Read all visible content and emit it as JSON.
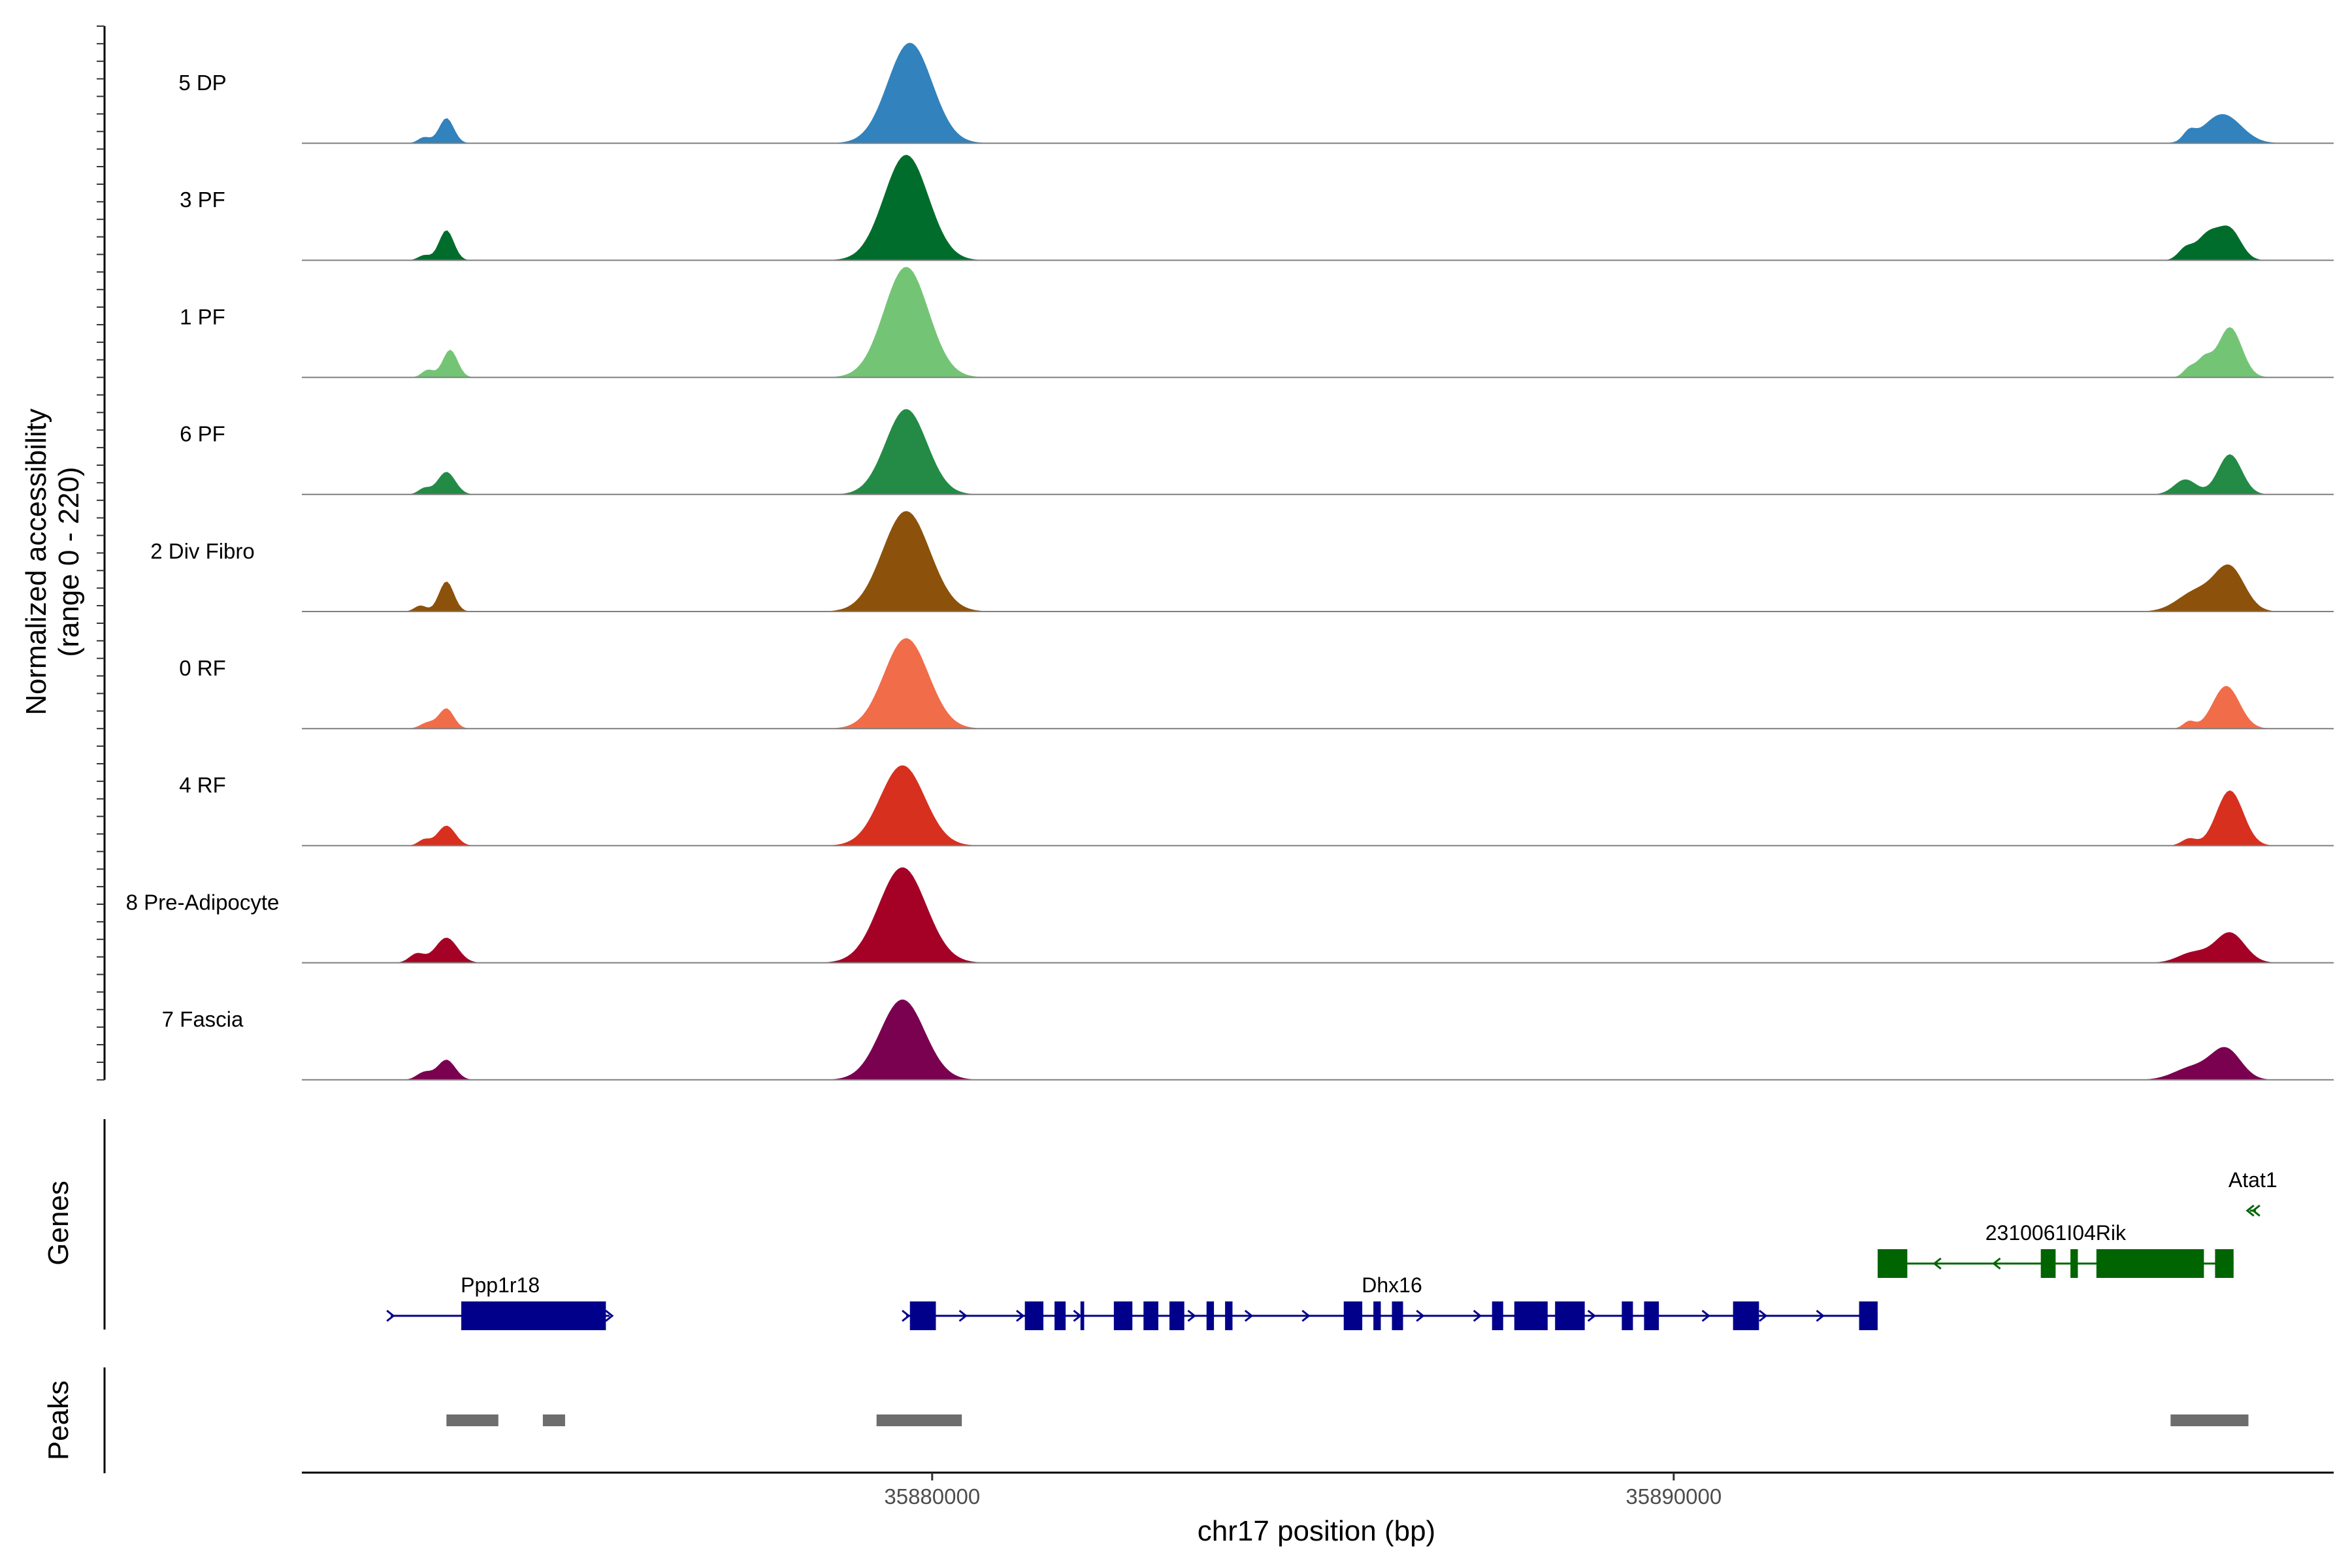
{
  "chart_data": {
    "type": "area",
    "subtype": "genome-coverage-tracks",
    "xlabel": "chr17 position (bp)",
    "ylabel_line1": "Normalized accessibility",
    "ylabel_line2": "(range 0 - 220)",
    "y_range": [
      0,
      220
    ],
    "x_range": [
      35871500,
      35898900
    ],
    "x_ticks": [
      {
        "value": 35880000,
        "label": "35880000"
      },
      {
        "value": 35890000,
        "label": "35890000"
      }
    ],
    "series": [
      {
        "name": "5 DP",
        "color": "#3182bd",
        "peaks": [
          [
            35873150,
            12,
            80
          ],
          [
            35873450,
            50,
            100
          ],
          [
            35879700,
            200,
            300
          ],
          [
            35896950,
            18,
            80
          ],
          [
            35897400,
            58,
            250
          ]
        ]
      },
      {
        "name": "3 PF",
        "color": "#006d2c",
        "peaks": [
          [
            35873150,
            10,
            80
          ],
          [
            35873450,
            60,
            100
          ],
          [
            35879650,
            210,
            300
          ],
          [
            35896900,
            22,
            100
          ],
          [
            35897200,
            50,
            150
          ],
          [
            35897500,
            60,
            150
          ]
        ]
      },
      {
        "name": "1 PF",
        "color": "#74c476",
        "peaks": [
          [
            35873200,
            15,
            80
          ],
          [
            35873500,
            55,
            100
          ],
          [
            35879650,
            220,
            300
          ],
          [
            35896950,
            18,
            80
          ],
          [
            35897150,
            35,
            100
          ],
          [
            35897500,
            100,
            160
          ]
        ]
      },
      {
        "name": "6 PF",
        "color": "#238b45",
        "peaks": [
          [
            35873150,
            12,
            80
          ],
          [
            35873450,
            45,
            120
          ],
          [
            35879650,
            170,
            280
          ],
          [
            35896900,
            30,
            150
          ],
          [
            35897500,
            80,
            160
          ]
        ]
      },
      {
        "name": "2 Div Fibro",
        "color": "#8c510a",
        "peaks": [
          [
            35873100,
            12,
            80
          ],
          [
            35873450,
            60,
            100
          ],
          [
            35879650,
            200,
            320
          ],
          [
            35897050,
            40,
            250
          ],
          [
            35897500,
            85,
            200
          ]
        ]
      },
      {
        "name": "0 RF",
        "color": "#f16c49",
        "peaks": [
          [
            35873200,
            12,
            100
          ],
          [
            35873450,
            40,
            100
          ],
          [
            35879650,
            180,
            300
          ],
          [
            35896950,
            14,
            80
          ],
          [
            35897450,
            85,
            180
          ]
        ]
      },
      {
        "name": "4 RF",
        "color": "#d7301f",
        "peaks": [
          [
            35873150,
            12,
            80
          ],
          [
            35873450,
            40,
            120
          ],
          [
            35879600,
            160,
            300
          ],
          [
            35896950,
            14,
            100
          ],
          [
            35897500,
            110,
            180
          ]
        ]
      },
      {
        "name": "8 Pre-Adipocyte",
        "color": "#a50026",
        "peaks": [
          [
            35873050,
            18,
            100
          ],
          [
            35873450,
            50,
            150
          ],
          [
            35879600,
            190,
            320
          ],
          [
            35897000,
            20,
            200
          ],
          [
            35897500,
            60,
            200
          ]
        ]
      },
      {
        "name": "7 Fascia",
        "color": "#7a0050",
        "peaks": [
          [
            35873150,
            15,
            100
          ],
          [
            35873450,
            40,
            120
          ],
          [
            35879600,
            160,
            300
          ],
          [
            35897000,
            25,
            250
          ],
          [
            35897450,
            60,
            200
          ]
        ]
      }
    ],
    "genes_track_label": "Genes",
    "genes": [
      {
        "name": "Ppp1r18",
        "strand": "+",
        "color": "#00008b",
        "start": 35872700,
        "end": 35875650,
        "row": 2,
        "exons": [
          [
            35873650,
            35875600
          ]
        ]
      },
      {
        "name": "Dhx16",
        "strand": "+",
        "color": "#00008b",
        "start": 35879650,
        "end": 35892750,
        "row": 2,
        "exons": [
          [
            35879700,
            35880050
          ],
          [
            35881250,
            35881500
          ],
          [
            35881650,
            35881800
          ],
          [
            35882000,
            35882050
          ],
          [
            35882450,
            35882700
          ],
          [
            35882850,
            35883050
          ],
          [
            35883200,
            35883400
          ],
          [
            35883700,
            35883800
          ],
          [
            35883950,
            35884050
          ],
          [
            35885550,
            35885800
          ],
          [
            35885950,
            35886050
          ],
          [
            35886200,
            35886350
          ],
          [
            35887550,
            35887700
          ],
          [
            35887850,
            35888300
          ],
          [
            35888400,
            35888800
          ],
          [
            35889300,
            35889450
          ],
          [
            35889600,
            35889800
          ],
          [
            35890800,
            35891150
          ],
          [
            35892500,
            35892750
          ]
        ]
      },
      {
        "name": "2310061I04Rik",
        "strand": "-",
        "color": "#006400",
        "start": 35892750,
        "end": 35897550,
        "row": 1,
        "exons": [
          [
            35892750,
            35893150
          ],
          [
            35894950,
            35895150
          ],
          [
            35895350,
            35895450
          ],
          [
            35895700,
            35897150
          ],
          [
            35897300,
            35897550
          ]
        ]
      },
      {
        "name": "Atat1",
        "strand": "-",
        "color": "#006400",
        "start": 35897770,
        "end": 35897850,
        "row": 0,
        "exons": []
      }
    ],
    "peaks_track_label": "Peaks",
    "called_peaks": [
      [
        35873450,
        35874150
      ],
      [
        35874750,
        35875050
      ],
      [
        35879250,
        35880400
      ],
      [
        35896700,
        35897750
      ]
    ]
  }
}
